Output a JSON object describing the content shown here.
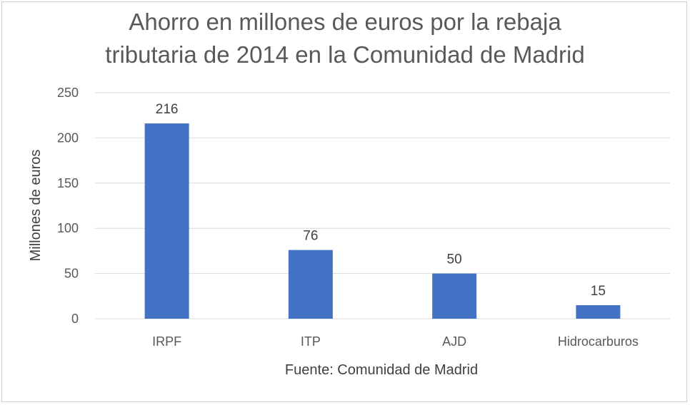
{
  "chart_data": {
    "type": "bar",
    "title_line1": "Ahorro en millones de euros por la rebaja",
    "title_line2": "tributaria de 2014 en la Comunidad de Madrid",
    "categories": [
      "IRPF",
      "ITP",
      "AJD",
      "Hidrocarburos"
    ],
    "values": [
      216,
      76,
      50,
      15
    ],
    "data_labels": [
      "216",
      "76",
      "50",
      "15"
    ],
    "xlabel": "Fuente: Comunidad de Madrid",
    "ylabel": "Millones de euros",
    "ylim": [
      0,
      250
    ],
    "yticks": [
      0,
      50,
      100,
      150,
      200,
      250
    ],
    "ytick_labels": [
      "0",
      "50",
      "100",
      "150",
      "200",
      "250"
    ],
    "grid": true,
    "legend": "none",
    "bar_color": "#4472c4",
    "grid_color": "#d9d9d9"
  }
}
